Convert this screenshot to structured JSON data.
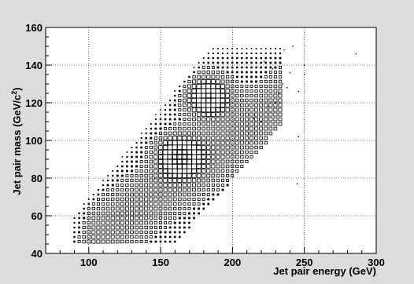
{
  "chart_data": {
    "type": "scatter",
    "title": "",
    "xlabel": "Jet pair energy (GeV)",
    "ylabel_main": "Jet pair mass (GeV/c",
    "ylabel_sup": "2",
    "ylabel_close": ")",
    "xlim": [
      70,
      300
    ],
    "ylim": [
      40,
      160
    ],
    "xticks": [
      100,
      150,
      200,
      250,
      300
    ],
    "yticks": [
      40,
      60,
      80,
      100,
      120,
      140,
      160
    ],
    "grid": true,
    "bin_width_x": 3.33,
    "bin_height_y": 2.5,
    "description_of_marks": "2D histogram drawn as boxes; box size grows with bin content",
    "peaks": [
      {
        "x": 183,
        "y": 123,
        "content": "high"
      },
      {
        "x": 163,
        "y": 92,
        "content": "high"
      }
    ],
    "sparse_points": [
      {
        "x": 245,
        "y": 77
      },
      {
        "x": 246,
        "y": 102
      },
      {
        "x": 250,
        "y": 135
      },
      {
        "x": 250,
        "y": 140
      },
      {
        "x": 286,
        "y": 146
      },
      {
        "x": 246,
        "y": 126
      }
    ],
    "colors": {
      "background": "#dcdcdc",
      "plot_area": "#ffffff",
      "marker": "#000000",
      "grid": "#000000"
    }
  }
}
